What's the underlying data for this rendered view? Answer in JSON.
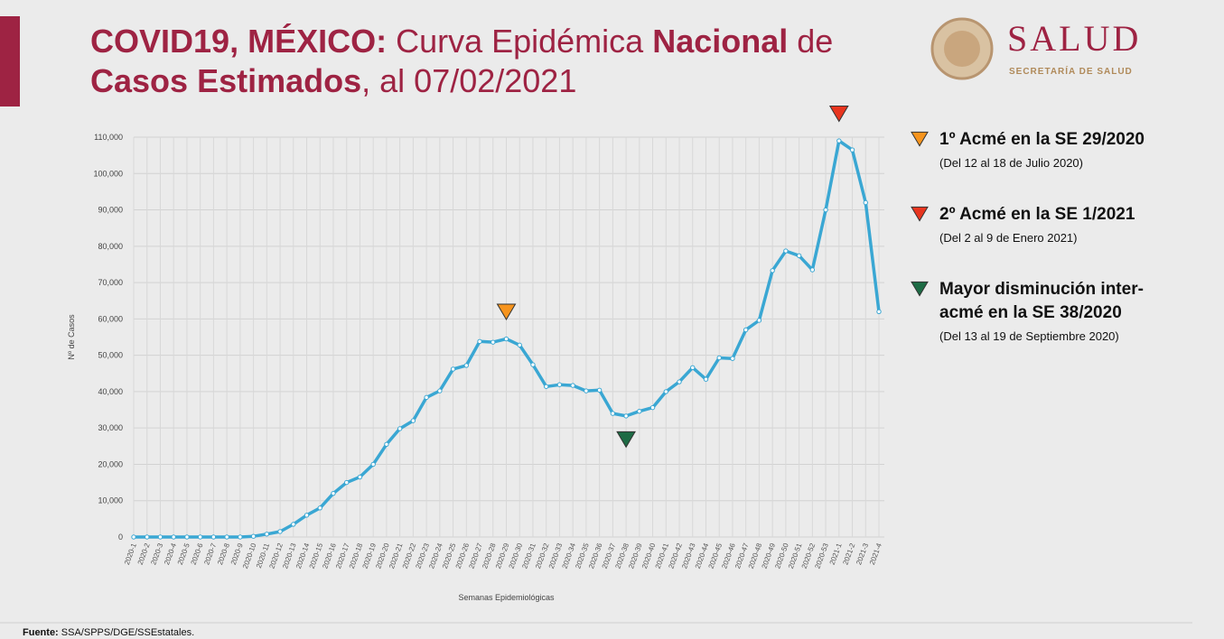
{
  "header": {
    "title_lines": [
      [
        "COVID19, MÉXICO:",
        " Curva Epidémica ",
        "Nacional",
        " de"
      ],
      [
        "Casos Estimados",
        ", al 07/02/2021"
      ]
    ],
    "logo_title": "SALUD",
    "logo_subtitle": "SECRETARÍA DE SALUD"
  },
  "footer": [
    "Fuente:",
    " SSA/SPPS/DGE/SSEstatales."
  ],
  "chart_data": {
    "type": "line",
    "x_label": "Semanas Epidemiológicas",
    "y_label": "Nº de Casos",
    "categories": [
      "2020-1",
      "2020-2",
      "2020-3",
      "2020-4",
      "2020-5",
      "2020-6",
      "2020-7",
      "2020-8",
      "2020-9",
      "2020-10",
      "2020-11",
      "2020-12",
      "2020-13",
      "2020-14",
      "2020-15",
      "2020-16",
      "2020-17",
      "2020-18",
      "2020-19",
      "2020-20",
      "2020-21",
      "2020-22",
      "2020-23",
      "2020-24",
      "2020-25",
      "2020-26",
      "2020-27",
      "2020-28",
      "2020-29",
      "2020-30",
      "2020-31",
      "2020-32",
      "2020-33",
      "2020-34",
      "2020-35",
      "2020-36",
      "2020-37",
      "2020-38",
      "2020-39",
      "2020-40",
      "2020-41",
      "2020-42",
      "2020-43",
      "2020-44",
      "2020-45",
      "2020-46",
      "2020-47",
      "2020-48",
      "2020-49",
      "2020-50",
      "2020-51",
      "2020-52",
      "2020-53",
      "2021-1",
      "2021-2",
      "2021-3",
      "2021-4"
    ],
    "values": [
      0,
      0,
      0,
      0,
      0,
      0,
      0,
      0,
      0,
      200,
      800,
      1500,
      3500,
      6000,
      8000,
      12000,
      15000,
      16500,
      20000,
      25500,
      29800,
      32000,
      38400,
      40200,
      46200,
      47200,
      53800,
      53600,
      54500,
      52800,
      47400,
      41400,
      41900,
      41700,
      40200,
      40400,
      34000,
      33300,
      34600,
      35600,
      40000,
      42700,
      46600,
      43400,
      49300,
      49100,
      57000,
      59600,
      73300,
      78700,
      77400,
      73500,
      90000,
      109000,
      106500,
      92000,
      62000
    ],
    "color": "#3aa7d3",
    "ylim": [
      0,
      110000
    ],
    "yticks": [
      0,
      {
        "value": 10000,
        "label": "10,000"
      },
      {
        "value": 20000,
        "label": "20,000"
      },
      {
        "value": 30000,
        "label": "30,000"
      },
      {
        "value": 40000,
        "label": "40,000"
      },
      {
        "value": 50000,
        "label": "50,000"
      },
      {
        "value": 60000,
        "label": "60,000"
      },
      {
        "value": 70000,
        "label": "70,000"
      },
      {
        "value": 80000,
        "label": "80,000"
      },
      {
        "value": 90000,
        "label": "90,000"
      },
      {
        "value": 100000,
        "label": "100,000"
      },
      {
        "value": 110000,
        "label": "110,000"
      }
    ],
    "grid": true,
    "annotations": [
      {
        "x": "2020-29",
        "color": "#f7941d",
        "label": [
          "1º Acmé en la SE 29/2020"
        ],
        "detail": "(Del 12 al 18 de Julio 2020)"
      },
      {
        "x": "2021-1",
        "color": "#e8351f",
        "label": [
          "2º Acmé en la SE 1/2021"
        ],
        "detail": "(Del 2 al 9 de Enero 2021)"
      },
      {
        "x": "2020-38",
        "color": "#1d6b44",
        "label": [
          "Mayor disminución inter-",
          "acmé en la SE 38/2020"
        ],
        "detail": "(Del 13 al 19 de Septiembre 2020)"
      }
    ]
  }
}
